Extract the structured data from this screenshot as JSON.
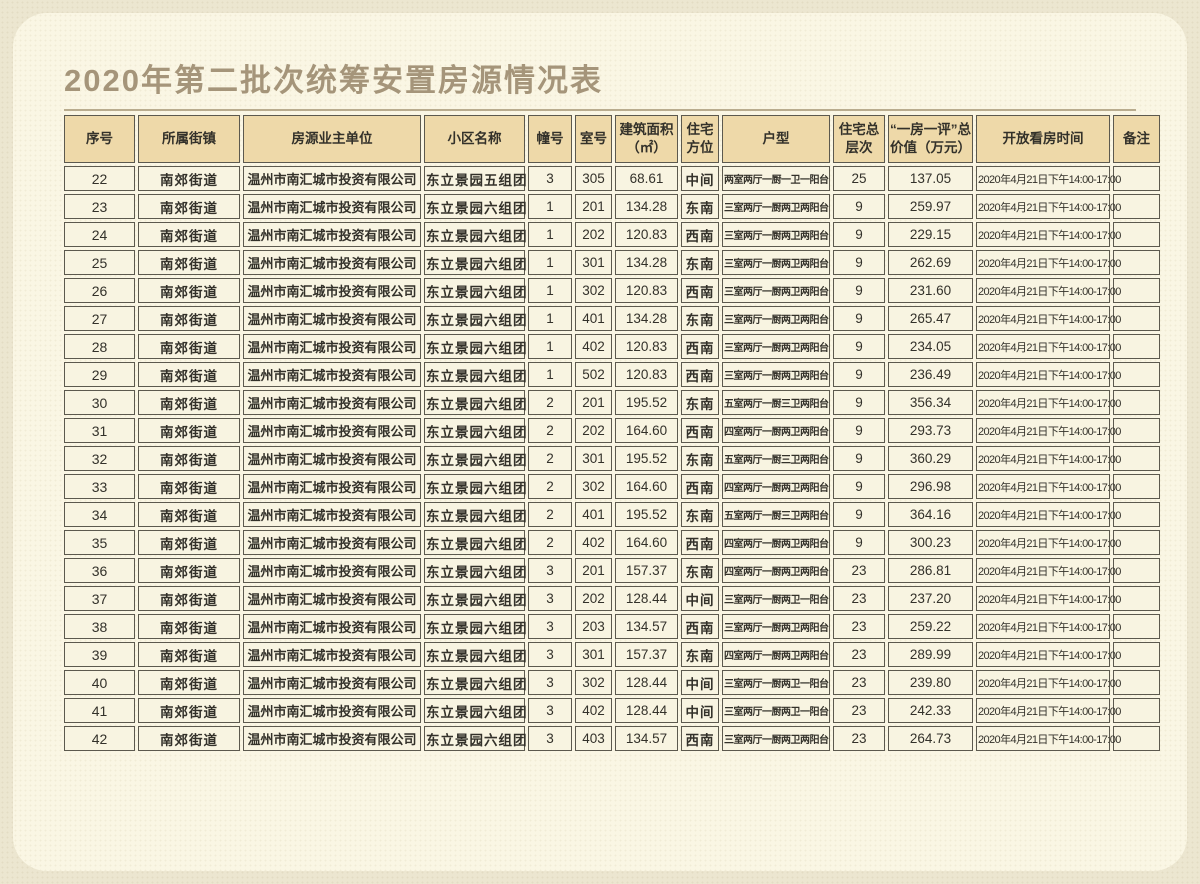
{
  "page": {
    "title": "2020年第二批次统筹安置房源情况表"
  },
  "table": {
    "columns": [
      {
        "key": "seq",
        "label": "序号"
      },
      {
        "key": "town",
        "label": "所属街镇"
      },
      {
        "key": "owner",
        "label": "房源业主单位"
      },
      {
        "key": "community",
        "label": "小区名称"
      },
      {
        "key": "building",
        "label": "幢号"
      },
      {
        "key": "room",
        "label": "室号"
      },
      {
        "key": "area",
        "label": "建筑面积（㎡）"
      },
      {
        "key": "facing",
        "label": "住宅方位"
      },
      {
        "key": "layout",
        "label": "户型"
      },
      {
        "key": "floors",
        "label": "住宅总层次"
      },
      {
        "key": "value",
        "label": "“一房一评”总价值（万元）"
      },
      {
        "key": "open_time",
        "label": "开放看房时间"
      },
      {
        "key": "remark",
        "label": "备注"
      }
    ],
    "rows": [
      [
        "22",
        "南郊街道",
        "温州市南汇城市投资有限公司",
        "东立景园五组团",
        "3",
        "305",
        "68.61",
        "中间",
        "两室两厅一厨一卫一阳台",
        "25",
        "137.05",
        "2020年4月21日下午14:00-17:00",
        ""
      ],
      [
        "23",
        "南郊街道",
        "温州市南汇城市投资有限公司",
        "东立景园六组团",
        "1",
        "201",
        "134.28",
        "东南",
        "三室两厅一厨两卫两阳台",
        "9",
        "259.97",
        "2020年4月21日下午14:00-17:00",
        ""
      ],
      [
        "24",
        "南郊街道",
        "温州市南汇城市投资有限公司",
        "东立景园六组团",
        "1",
        "202",
        "120.83",
        "西南",
        "三室两厅一厨两卫两阳台",
        "9",
        "229.15",
        "2020年4月21日下午14:00-17:00",
        ""
      ],
      [
        "25",
        "南郊街道",
        "温州市南汇城市投资有限公司",
        "东立景园六组团",
        "1",
        "301",
        "134.28",
        "东南",
        "三室两厅一厨两卫两阳台",
        "9",
        "262.69",
        "2020年4月21日下午14:00-17:00",
        ""
      ],
      [
        "26",
        "南郊街道",
        "温州市南汇城市投资有限公司",
        "东立景园六组团",
        "1",
        "302",
        "120.83",
        "西南",
        "三室两厅一厨两卫两阳台",
        "9",
        "231.60",
        "2020年4月21日下午14:00-17:00",
        ""
      ],
      [
        "27",
        "南郊街道",
        "温州市南汇城市投资有限公司",
        "东立景园六组团",
        "1",
        "401",
        "134.28",
        "东南",
        "三室两厅一厨两卫两阳台",
        "9",
        "265.47",
        "2020年4月21日下午14:00-17:00",
        ""
      ],
      [
        "28",
        "南郊街道",
        "温州市南汇城市投资有限公司",
        "东立景园六组团",
        "1",
        "402",
        "120.83",
        "西南",
        "三室两厅一厨两卫两阳台",
        "9",
        "234.05",
        "2020年4月21日下午14:00-17:00",
        ""
      ],
      [
        "29",
        "南郊街道",
        "温州市南汇城市投资有限公司",
        "东立景园六组团",
        "1",
        "502",
        "120.83",
        "西南",
        "三室两厅一厨两卫两阳台",
        "9",
        "236.49",
        "2020年4月21日下午14:00-17:00",
        ""
      ],
      [
        "30",
        "南郊街道",
        "温州市南汇城市投资有限公司",
        "东立景园六组团",
        "2",
        "201",
        "195.52",
        "东南",
        "五室两厅一厨三卫两阳台",
        "9",
        "356.34",
        "2020年4月21日下午14:00-17:00",
        ""
      ],
      [
        "31",
        "南郊街道",
        "温州市南汇城市投资有限公司",
        "东立景园六组团",
        "2",
        "202",
        "164.60",
        "西南",
        "四室两厅一厨两卫两阳台",
        "9",
        "293.73",
        "2020年4月21日下午14:00-17:00",
        ""
      ],
      [
        "32",
        "南郊街道",
        "温州市南汇城市投资有限公司",
        "东立景园六组团",
        "2",
        "301",
        "195.52",
        "东南",
        "五室两厅一厨三卫两阳台",
        "9",
        "360.29",
        "2020年4月21日下午14:00-17:00",
        ""
      ],
      [
        "33",
        "南郊街道",
        "温州市南汇城市投资有限公司",
        "东立景园六组团",
        "2",
        "302",
        "164.60",
        "西南",
        "四室两厅一厨两卫两阳台",
        "9",
        "296.98",
        "2020年4月21日下午14:00-17:00",
        ""
      ],
      [
        "34",
        "南郊街道",
        "温州市南汇城市投资有限公司",
        "东立景园六组团",
        "2",
        "401",
        "195.52",
        "东南",
        "五室两厅一厨三卫两阳台",
        "9",
        "364.16",
        "2020年4月21日下午14:00-17:00",
        ""
      ],
      [
        "35",
        "南郊街道",
        "温州市南汇城市投资有限公司",
        "东立景园六组团",
        "2",
        "402",
        "164.60",
        "西南",
        "四室两厅一厨两卫两阳台",
        "9",
        "300.23",
        "2020年4月21日下午14:00-17:00",
        ""
      ],
      [
        "36",
        "南郊街道",
        "温州市南汇城市投资有限公司",
        "东立景园六组团",
        "3",
        "201",
        "157.37",
        "东南",
        "四室两厅一厨两卫两阳台",
        "23",
        "286.81",
        "2020年4月21日下午14:00-17:00",
        ""
      ],
      [
        "37",
        "南郊街道",
        "温州市南汇城市投资有限公司",
        "东立景园六组团",
        "3",
        "202",
        "128.44",
        "中间",
        "三室两厅一厨两卫一阳台",
        "23",
        "237.20",
        "2020年4月21日下午14:00-17:00",
        ""
      ],
      [
        "38",
        "南郊街道",
        "温州市南汇城市投资有限公司",
        "东立景园六组团",
        "3",
        "203",
        "134.57",
        "西南",
        "三室两厅一厨两卫两阳台",
        "23",
        "259.22",
        "2020年4月21日下午14:00-17:00",
        ""
      ],
      [
        "39",
        "南郊街道",
        "温州市南汇城市投资有限公司",
        "东立景园六组团",
        "3",
        "301",
        "157.37",
        "东南",
        "四室两厅一厨两卫两阳台",
        "23",
        "289.99",
        "2020年4月21日下午14:00-17:00",
        ""
      ],
      [
        "40",
        "南郊街道",
        "温州市南汇城市投资有限公司",
        "东立景园六组团",
        "3",
        "302",
        "128.44",
        "中间",
        "三室两厅一厨两卫一阳台",
        "23",
        "239.80",
        "2020年4月21日下午14:00-17:00",
        ""
      ],
      [
        "41",
        "南郊街道",
        "温州市南汇城市投资有限公司",
        "东立景园六组团",
        "3",
        "402",
        "128.44",
        "中间",
        "三室两厅一厨两卫一阳台",
        "23",
        "242.33",
        "2020年4月21日下午14:00-17:00",
        ""
      ],
      [
        "42",
        "南郊街道",
        "温州市南汇城市投资有限公司",
        "东立景园六组团",
        "3",
        "403",
        "134.57",
        "西南",
        "三室两厅一厨两卫两阳台",
        "23",
        "264.73",
        "2020年4月21日下午14:00-17:00",
        ""
      ]
    ]
  },
  "colors": {
    "page_background": "#ece6d0",
    "sheet_background": "#faf6e4",
    "header_background": "#eed9a9",
    "cell_background": "#f8f4e1",
    "border": "#5c594e",
    "title_text": "#a5957a",
    "body_text": "#33312a"
  }
}
